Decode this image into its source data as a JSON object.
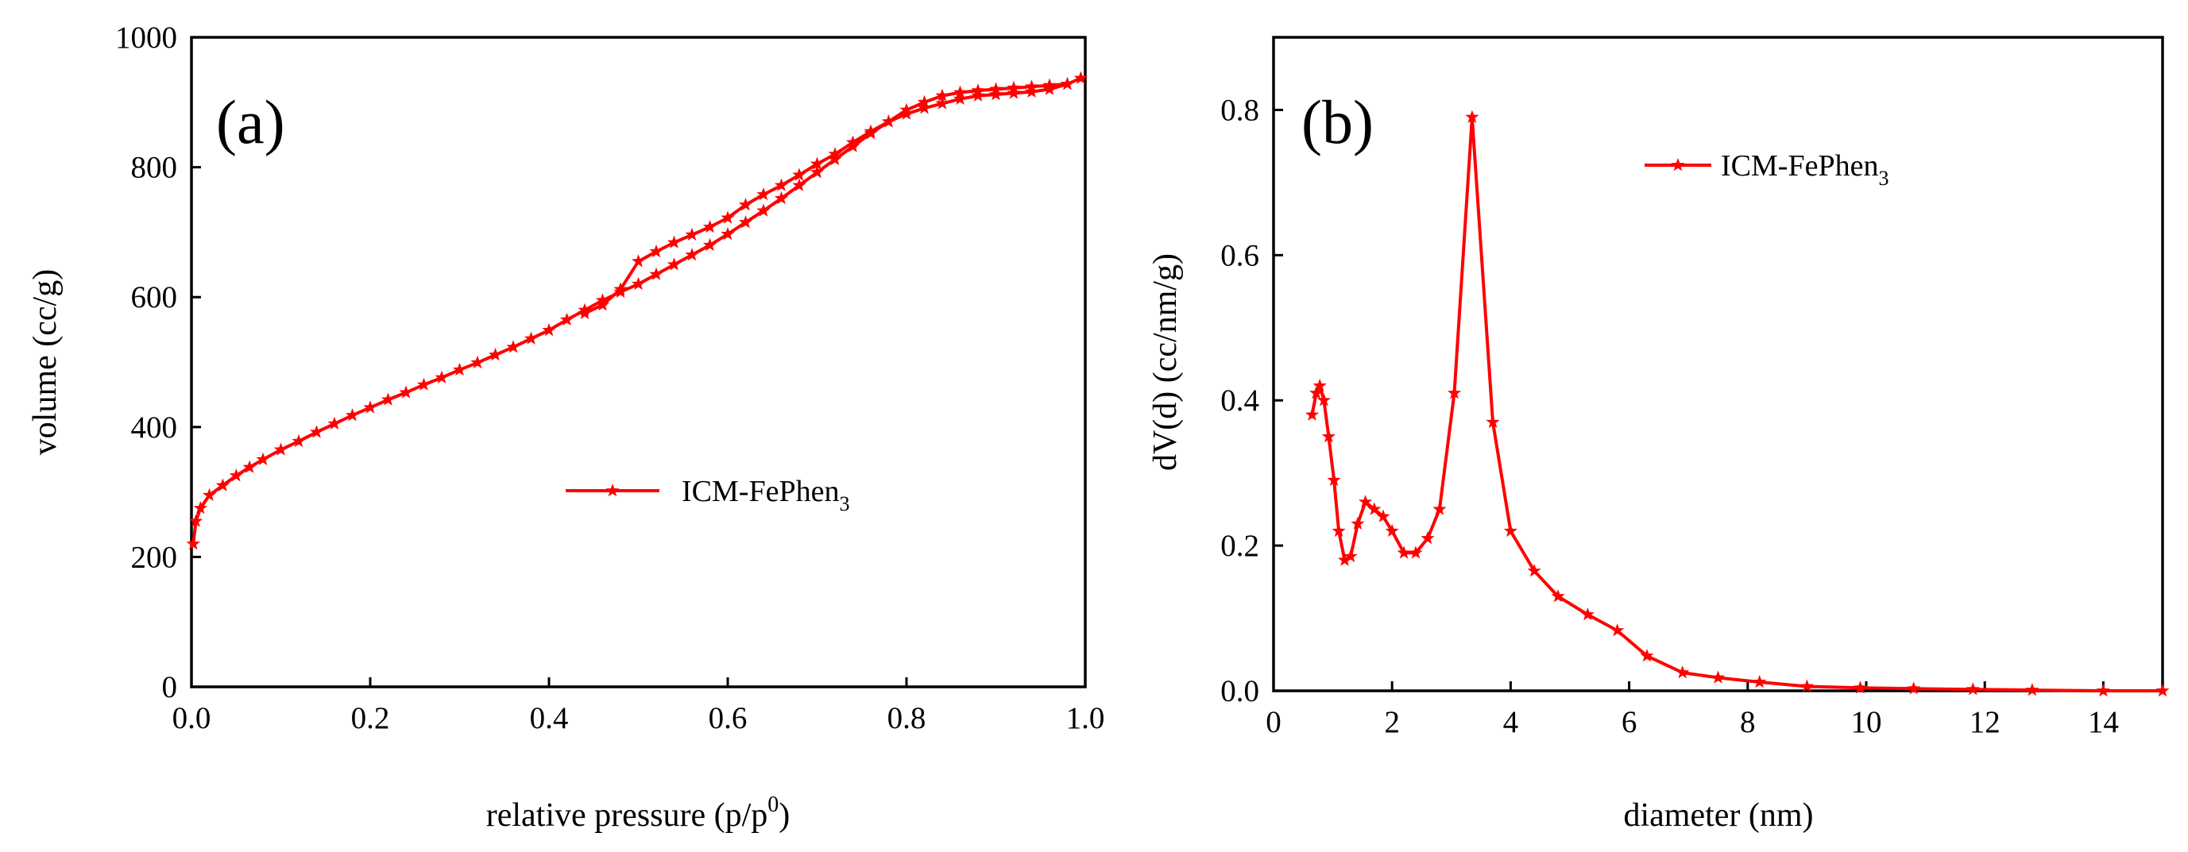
{
  "figure_title": "",
  "colors": {
    "series": "#ff0000",
    "axes": "#000000",
    "background": "#ffffff"
  },
  "chart_data": [
    {
      "type": "line",
      "panel_label": "(a)",
      "title": "",
      "xlabel": "relative pressure (p/p",
      "xlabel_sup": "0",
      "xlabel_suffix": ")",
      "ylabel": "volume (cc/g)",
      "xlim": [
        0.0,
        1.0
      ],
      "ylim": [
        0,
        1000
      ],
      "xticks": [
        "0.0",
        "0.2",
        "0.4",
        "0.6",
        "0.8",
        "1.0"
      ],
      "yticks": [
        "0",
        "200",
        "400",
        "600",
        "800",
        "1000"
      ],
      "xtick_values": [
        0.0,
        0.2,
        0.4,
        0.6,
        0.8,
        1.0
      ],
      "ytick_values": [
        0,
        200,
        400,
        600,
        800,
        1000
      ],
      "grid": false,
      "marker": "star",
      "legend": {
        "position": "center-right",
        "label": "ICM-FePhen",
        "label_sub": "3"
      },
      "series": [
        {
          "name": "ICM-FePhen3",
          "color": "#ff0000",
          "x": [
            0.002,
            0.005,
            0.01,
            0.02,
            0.035,
            0.05,
            0.065,
            0.08,
            0.1,
            0.12,
            0.14,
            0.16,
            0.18,
            0.2,
            0.22,
            0.24,
            0.26,
            0.28,
            0.3,
            0.32,
            0.34,
            0.36,
            0.38,
            0.4,
            0.42,
            0.44,
            0.46,
            0.48,
            0.5,
            0.52,
            0.54,
            0.56,
            0.58,
            0.6,
            0.62,
            0.64,
            0.66,
            0.68,
            0.7,
            0.72,
            0.74,
            0.76,
            0.78,
            0.8,
            0.82,
            0.84,
            0.86,
            0.88,
            0.9,
            0.92,
            0.94,
            0.96,
            0.98,
            0.995,
            0.98,
            0.96,
            0.94,
            0.92,
            0.9,
            0.88,
            0.86,
            0.84,
            0.82,
            0.8,
            0.78,
            0.76,
            0.74,
            0.72,
            0.7,
            0.68,
            0.66,
            0.64,
            0.62,
            0.6,
            0.58,
            0.56,
            0.54,
            0.52,
            0.5,
            0.48,
            0.46,
            0.44
          ],
          "y": [
            220,
            255,
            275,
            295,
            310,
            325,
            338,
            350,
            365,
            378,
            392,
            405,
            418,
            430,
            442,
            453,
            465,
            476,
            488,
            499,
            511,
            523,
            536,
            549,
            565,
            580,
            595,
            608,
            620,
            635,
            650,
            665,
            680,
            697,
            715,
            733,
            752,
            772,
            792,
            812,
            832,
            852,
            870,
            888,
            900,
            910,
            915,
            918,
            920,
            922,
            924,
            926,
            928,
            937,
            928,
            920,
            916,
            914,
            912,
            910,
            905,
            898,
            891,
            882,
            870,
            855,
            838,
            820,
            805,
            788,
            772,
            758,
            742,
            722,
            708,
            696,
            684,
            670,
            655,
            612,
            588,
            575
          ]
        }
      ]
    },
    {
      "type": "line",
      "panel_label": "(b)",
      "title": "",
      "xlabel": "diameter (nm)",
      "ylabel": "dV(d) (cc/nm/g)",
      "xlim": [
        0,
        15
      ],
      "ylim": [
        0.0,
        0.9
      ],
      "xticks": [
        "0",
        "2",
        "4",
        "6",
        "8",
        "10",
        "12",
        "14"
      ],
      "yticks": [
        "0.0",
        "0.2",
        "0.4",
        "0.6",
        "0.8"
      ],
      "xtick_values": [
        0,
        2,
        4,
        6,
        8,
        10,
        12,
        14
      ],
      "ytick_values": [
        0.0,
        0.2,
        0.4,
        0.6,
        0.8
      ],
      "grid": false,
      "marker": "star",
      "legend": {
        "position": "top-right",
        "label": "ICM-FePhen",
        "label_sub": "3"
      },
      "series": [
        {
          "name": "ICM-FePhen3",
          "color": "#ff0000",
          "x": [
            0.65,
            0.72,
            0.78,
            0.85,
            0.93,
            1.02,
            1.1,
            1.2,
            1.3,
            1.42,
            1.55,
            1.7,
            1.85,
            2.0,
            2.2,
            2.4,
            2.6,
            2.8,
            3.05,
            3.35,
            3.7,
            4.0,
            4.4,
            4.8,
            5.3,
            5.8,
            6.3,
            6.9,
            7.5,
            8.2,
            9.0,
            9.9,
            10.8,
            11.8,
            12.8,
            14.0,
            15.0
          ],
          "y": [
            0.38,
            0.41,
            0.42,
            0.4,
            0.35,
            0.29,
            0.22,
            0.18,
            0.185,
            0.23,
            0.26,
            0.25,
            0.24,
            0.22,
            0.19,
            0.19,
            0.21,
            0.25,
            0.41,
            0.79,
            0.37,
            0.22,
            0.165,
            0.13,
            0.105,
            0.083,
            0.048,
            0.025,
            0.018,
            0.012,
            0.006,
            0.004,
            0.003,
            0.002,
            0.001,
            0.0,
            0.0
          ]
        }
      ]
    }
  ]
}
